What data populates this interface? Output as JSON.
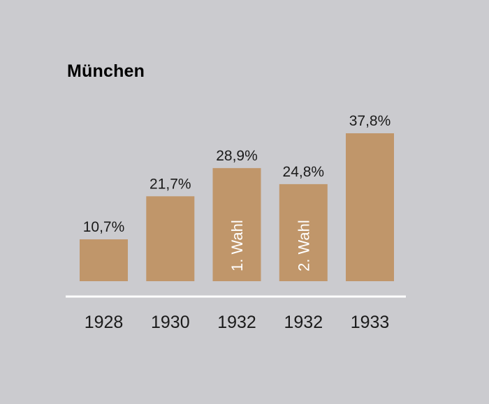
{
  "chart_data": {
    "type": "bar",
    "title": "München",
    "categories": [
      "1928",
      "1930",
      "1932",
      "1932",
      "1933"
    ],
    "values": [
      10.7,
      21.7,
      28.9,
      24.8,
      37.8
    ],
    "value_labels": [
      "10,7%",
      "21,7%",
      "28,9%",
      "24,8%",
      "37,8%"
    ],
    "bar_annotations": [
      "",
      "",
      "1. Wahl",
      "2. Wahl",
      ""
    ],
    "xlabel": "",
    "ylabel": "",
    "ylim": [
      0,
      37.8
    ],
    "grid": false,
    "legend": "none"
  },
  "colors": {
    "background": "#cbcbcf",
    "bar": "#c0966a",
    "baseline": "#ffffff",
    "text": "#1a1a1a",
    "annotation": "#ffffff"
  }
}
